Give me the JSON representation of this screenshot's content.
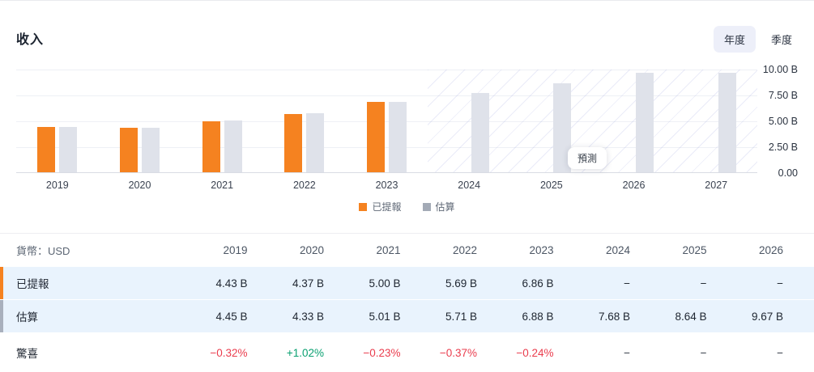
{
  "header": {
    "title": "收入",
    "tabs": [
      {
        "label": "年度",
        "active": true
      },
      {
        "label": "季度",
        "active": false
      }
    ]
  },
  "chart_data": {
    "type": "bar",
    "title": "收入",
    "categories": [
      "2019",
      "2020",
      "2021",
      "2022",
      "2023",
      "2024",
      "2025",
      "2026",
      "2027"
    ],
    "series": [
      {
        "name": "已提報",
        "color": "#f58220",
        "values": [
          4.43,
          4.37,
          5.0,
          5.69,
          6.86,
          null,
          null,
          null,
          null
        ]
      },
      {
        "name": "估算",
        "color": "#dfe2ea",
        "values": [
          4.45,
          4.33,
          5.01,
          5.71,
          6.88,
          7.68,
          8.64,
          9.67,
          9.72
        ]
      }
    ],
    "legend_swatch_colors": [
      "#f58220",
      "#a3aab6"
    ],
    "unit": "B",
    "ylim": [
      0,
      10
    ],
    "yticks": [
      "10.00 B",
      "7.50 B",
      "5.00 B",
      "2.50 B",
      "0.00"
    ],
    "grid": true,
    "legend_position": "bottom",
    "yaxis_position": "right",
    "forecast_start_category": "2024",
    "forecast_label": "預測"
  },
  "table": {
    "currency_label": "貨幣：USD",
    "years": [
      "2019",
      "2020",
      "2021",
      "2022",
      "2023",
      "2024",
      "2025",
      "2026"
    ],
    "rows": [
      {
        "label": "已提報",
        "accent": "#f58220",
        "highlighted": true,
        "values": [
          "4.43 B",
          "4.37 B",
          "5.00 B",
          "5.69 B",
          "6.86 B",
          "−",
          "−",
          "−"
        ]
      },
      {
        "label": "估算",
        "accent": "#a9b0bd",
        "highlighted": true,
        "values": [
          "4.45 B",
          "4.33 B",
          "5.01 B",
          "5.71 B",
          "6.88 B",
          "7.68 B",
          "8.64 B",
          "9.67 B"
        ]
      },
      {
        "label": "驚喜",
        "accent": null,
        "highlighted": false,
        "values": [
          "−0.32%",
          "+1.02%",
          "−0.23%",
          "−0.37%",
          "−0.24%",
          "−",
          "−",
          "−"
        ],
        "value_colors": [
          "#ea3d4e",
          "#0aa071",
          "#ea3d4e",
          "#ea3d4e",
          "#ea3d4e",
          "#333b46",
          "#333b46",
          "#333b46"
        ]
      }
    ]
  }
}
